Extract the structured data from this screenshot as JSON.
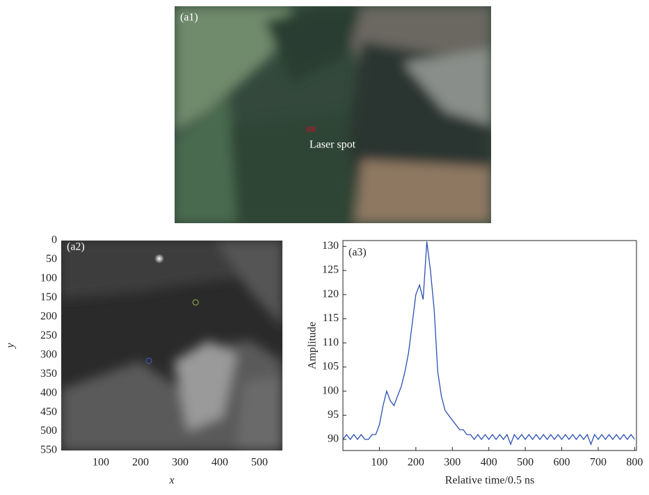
{
  "panel_a1": {
    "label": "(a1)",
    "annotation": "Laser spot"
  },
  "chart_data": [
    {
      "type": "scatter",
      "annotation": "(a2)",
      "xlabel": "x",
      "ylabel": "y",
      "x": [
        339,
        221
      ],
      "values": [
        162,
        315
      ],
      "colors": [
        "#9bb24c",
        "#3a5fd0"
      ],
      "xlim": [
        0,
        558
      ],
      "ylim": [
        550,
        0
      ],
      "xticks": [
        100,
        200,
        300,
        400,
        500
      ],
      "yticks": [
        0,
        50,
        100,
        150,
        200,
        250,
        300,
        350,
        400,
        450,
        500,
        550
      ]
    },
    {
      "type": "line",
      "annotation": "(a3)",
      "xlabel": "Relative time/0.5 ns",
      "ylabel": "Amplitude",
      "color": "#2a50b4",
      "x": [
        0,
        10,
        20,
        30,
        40,
        50,
        60,
        70,
        80,
        90,
        100,
        110,
        120,
        130,
        140,
        150,
        160,
        170,
        180,
        190,
        200,
        210,
        220,
        230,
        240,
        250,
        260,
        270,
        280,
        290,
        300,
        310,
        320,
        330,
        340,
        350,
        360,
        370,
        380,
        390,
        400,
        410,
        420,
        430,
        440,
        450,
        460,
        470,
        480,
        490,
        500,
        510,
        520,
        530,
        540,
        550,
        560,
        570,
        580,
        590,
        600,
        610,
        620,
        630,
        640,
        650,
        660,
        670,
        680,
        690,
        700,
        710,
        720,
        730,
        740,
        750,
        760,
        770,
        780,
        790,
        800
      ],
      "values": [
        90,
        91,
        90,
        91,
        90,
        91,
        90,
        90,
        91,
        91,
        93,
        97,
        100,
        98,
        97,
        99,
        101,
        104,
        108,
        114,
        120,
        122,
        119,
        131,
        125,
        117,
        104,
        99,
        96,
        95,
        94,
        93,
        92,
        92,
        91,
        91,
        90,
        91,
        90,
        91,
        90,
        91,
        90,
        91,
        90,
        91,
        89,
        91,
        90,
        91,
        90,
        91,
        90,
        91,
        90,
        91,
        90,
        91,
        90,
        91,
        90,
        91,
        90,
        91,
        90,
        91,
        90,
        91,
        89,
        91,
        90,
        91,
        90,
        91,
        90,
        91,
        90,
        91,
        90,
        91,
        90
      ],
      "xlim": [
        0,
        805
      ],
      "ylim": [
        87.7,
        131.2
      ],
      "xticks": [
        100,
        200,
        300,
        400,
        500,
        600,
        700,
        800
      ],
      "yticks": [
        90,
        95,
        100,
        105,
        110,
        115,
        120,
        125,
        130
      ]
    }
  ]
}
